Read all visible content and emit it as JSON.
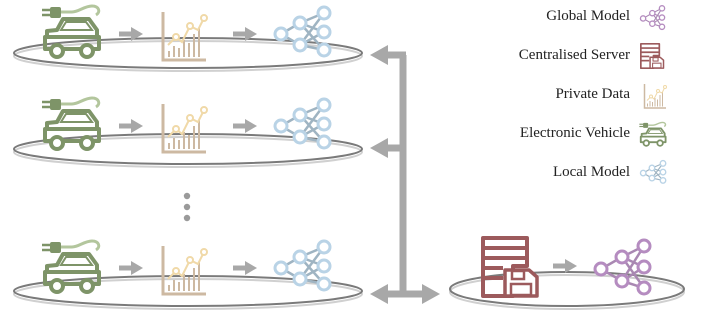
{
  "legend": {
    "items": [
      {
        "label": "Global Model",
        "icon": "global-model-icon"
      },
      {
        "label": "Centralised Server",
        "icon": "server-icon"
      },
      {
        "label": "Private Data",
        "icon": "private-data-icon"
      },
      {
        "label": "Electronic Vehicle",
        "icon": "electric-vehicle-icon"
      },
      {
        "label": "Local Model",
        "icon": "local-model-icon"
      }
    ]
  },
  "colors": {
    "vehicle": "#7e9468",
    "vehicle_plug": "#b3c69d",
    "data": "#cdb9a2",
    "data_line": "#f0d9a8",
    "local_model": "#b9d3e6",
    "local_model_edge": "#9fb4c2",
    "global_model": "#b58cc0",
    "server": "#9c5a5c",
    "arrow": "#a8a8a8",
    "platform": "#7a7a7a"
  },
  "clients": {
    "count_shown": 3,
    "ellipsis": "vertical-dots"
  }
}
